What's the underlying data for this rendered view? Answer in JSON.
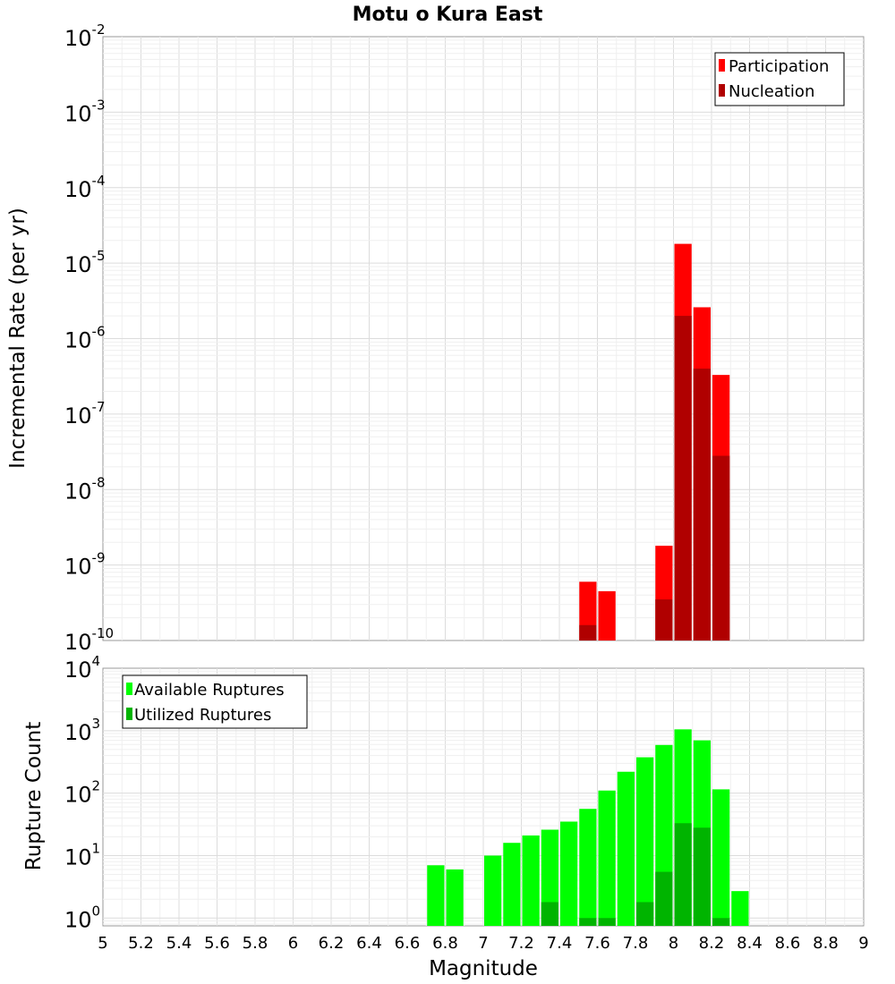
{
  "chart_data": [
    {
      "type": "bar",
      "title": "Motu o Kura East",
      "ylabel": "Incremental Rate (per yr)",
      "y_scale": "log",
      "ylim": [
        1e-10,
        0.01
      ],
      "xlim": [
        5,
        9
      ],
      "x_step": 0.1,
      "grid": true,
      "legend": {
        "placement": "top-right"
      },
      "series": [
        {
          "name": "Participation",
          "color": "#ff0000",
          "points": [
            {
              "x": 7.55,
              "y": 6e-10
            },
            {
              "x": 7.65,
              "y": 4.5e-10
            },
            {
              "x": 7.95,
              "y": 1.8e-09
            },
            {
              "x": 8.05,
              "y": 1.8e-05
            },
            {
              "x": 8.15,
              "y": 2.6e-06
            },
            {
              "x": 8.25,
              "y": 3.3e-07
            }
          ]
        },
        {
          "name": "Nucleation",
          "color": "#b00000",
          "points": [
            {
              "x": 7.55,
              "y": 1.6e-10
            },
            {
              "x": 7.95,
              "y": 3.5e-10
            },
            {
              "x": 8.05,
              "y": 2e-06
            },
            {
              "x": 8.15,
              "y": 4e-07
            },
            {
              "x": 8.25,
              "y": 2.8e-08
            }
          ]
        }
      ]
    },
    {
      "type": "bar",
      "ylabel": "Rupture Count",
      "xlabel": "Magnitude",
      "y_scale": "log",
      "ylim": [
        0.75,
        10000
      ],
      "xlim": [
        5,
        9
      ],
      "x_step": 0.1,
      "grid": true,
      "legend": {
        "placement": "top-left"
      },
      "x_ticks": [
        "5",
        "5.2",
        "5.4",
        "5.6",
        "5.8",
        "6",
        "6.2",
        "6.4",
        "6.6",
        "6.8",
        "7",
        "7.2",
        "7.4",
        "7.6",
        "7.8",
        "8",
        "8.2",
        "8.4",
        "8.6",
        "8.8",
        "9"
      ],
      "series": [
        {
          "name": "Available Ruptures",
          "color": "#00ff00",
          "points": [
            {
              "x": 6.75,
              "y": 7
            },
            {
              "x": 6.85,
              "y": 6
            },
            {
              "x": 7.05,
              "y": 10
            },
            {
              "x": 7.15,
              "y": 16
            },
            {
              "x": 7.25,
              "y": 21
            },
            {
              "x": 7.35,
              "y": 26
            },
            {
              "x": 7.45,
              "y": 35
            },
            {
              "x": 7.55,
              "y": 56
            },
            {
              "x": 7.65,
              "y": 110
            },
            {
              "x": 7.75,
              "y": 220
            },
            {
              "x": 7.85,
              "y": 375
            },
            {
              "x": 7.95,
              "y": 590
            },
            {
              "x": 8.05,
              "y": 1050
            },
            {
              "x": 8.15,
              "y": 700
            },
            {
              "x": 8.25,
              "y": 115
            },
            {
              "x": 8.35,
              "y": 2.7
            }
          ]
        },
        {
          "name": "Utilized Ruptures",
          "color": "#00b400",
          "points": [
            {
              "x": 7.35,
              "y": 1.8
            },
            {
              "x": 7.55,
              "y": 1
            },
            {
              "x": 7.65,
              "y": 1
            },
            {
              "x": 7.85,
              "y": 1.8
            },
            {
              "x": 7.95,
              "y": 5.5
            },
            {
              "x": 8.05,
              "y": 33
            },
            {
              "x": 8.15,
              "y": 28
            },
            {
              "x": 8.25,
              "y": 1
            }
          ]
        }
      ]
    }
  ]
}
